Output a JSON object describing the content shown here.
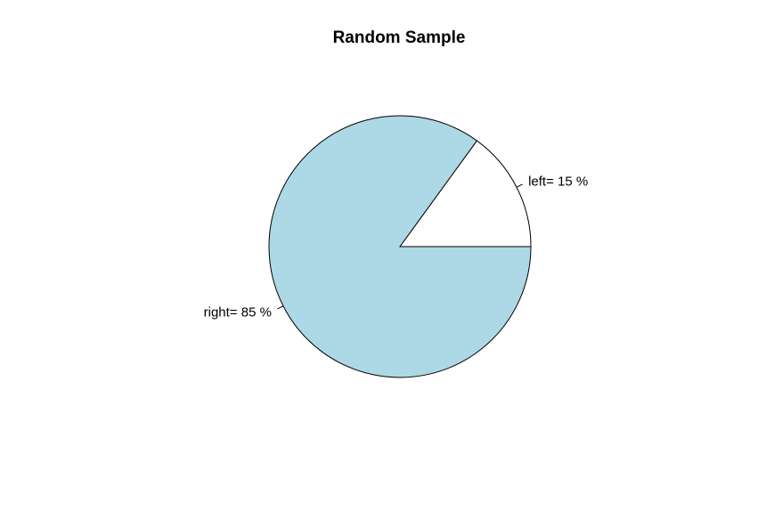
{
  "chart_data": {
    "type": "pie",
    "title": "Random Sample",
    "slices": [
      {
        "label": "left= 15 %",
        "value": 15,
        "color": "#ffffff"
      },
      {
        "label": "right= 85 %",
        "value": 85,
        "color": "#add8e6"
      }
    ],
    "start_angle_deg": 0,
    "direction": "counterclockwise",
    "border_color": "#000000"
  }
}
